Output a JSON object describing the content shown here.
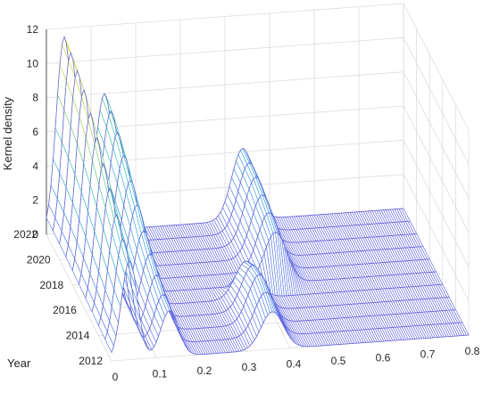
{
  "chart_data": {
    "type": "waterfall-3d",
    "title": "",
    "xlabel": "",
    "ylabel": "Year",
    "zlabel": "Kernel density",
    "xlim": [
      0,
      0.8
    ],
    "zlim": [
      0,
      12
    ],
    "x_ticks": [
      "0",
      "0.1",
      "0.2",
      "0.3",
      "0.4",
      "0.5",
      "0.6",
      "0.7",
      "0.8"
    ],
    "year_ticks": [
      "2012",
      "2014",
      "2016",
      "2018",
      "2020",
      "2022"
    ],
    "z_ticks": [
      "0",
      "2",
      "4",
      "6",
      "8",
      "10",
      "12"
    ],
    "grid": true,
    "colormap": "parula",
    "years": [
      2012,
      2013,
      2014,
      2015,
      2016,
      2017,
      2018,
      2019,
      2020,
      2021,
      2022
    ],
    "peaks": [
      [
        {
          "x": 0.04,
          "h": 5.8,
          "w": 0.018
        },
        {
          "x": 0.13,
          "h": 2.7,
          "w": 0.02
        },
        {
          "x": 0.36,
          "h": 2.2,
          "w": 0.025
        }
      ],
      [
        {
          "x": 0.04,
          "h": 6.3,
          "w": 0.018
        },
        {
          "x": 0.13,
          "h": 2.9,
          "w": 0.02
        },
        {
          "x": 0.36,
          "h": 2.6,
          "w": 0.025
        }
      ],
      [
        {
          "x": 0.04,
          "h": 7.0,
          "w": 0.018
        },
        {
          "x": 0.13,
          "h": 3.3,
          "w": 0.02
        },
        {
          "x": 0.36,
          "h": 2.9,
          "w": 0.025
        }
      ],
      [
        {
          "x": 0.04,
          "h": 7.8,
          "w": 0.018
        },
        {
          "x": 0.13,
          "h": 3.8,
          "w": 0.02
        },
        {
          "x": 0.36,
          "h": 2.7,
          "w": 0.025
        }
      ],
      [
        {
          "x": 0.04,
          "h": 8.5,
          "w": 0.018
        },
        {
          "x": 0.13,
          "h": 4.4,
          "w": 0.02
        },
        {
          "x": 0.36,
          "h": 2.2,
          "w": 0.025
        }
      ],
      [
        {
          "x": 0.04,
          "h": 9.3,
          "w": 0.018
        },
        {
          "x": 0.13,
          "h": 5.2,
          "w": 0.02
        },
        {
          "x": 0.44,
          "h": 3.0,
          "w": 0.025
        }
      ],
      [
        {
          "x": 0.04,
          "h": 10.0,
          "w": 0.018
        },
        {
          "x": 0.13,
          "h": 5.9,
          "w": 0.02
        },
        {
          "x": 0.44,
          "h": 3.4,
          "w": 0.025
        }
      ],
      [
        {
          "x": 0.04,
          "h": 10.6,
          "w": 0.018
        },
        {
          "x": 0.13,
          "h": 6.6,
          "w": 0.02
        },
        {
          "x": 0.44,
          "h": 3.7,
          "w": 0.025
        }
      ],
      [
        {
          "x": 0.04,
          "h": 11.0,
          "w": 0.018
        },
        {
          "x": 0.13,
          "h": 7.2,
          "w": 0.02
        },
        {
          "x": 0.44,
          "h": 4.0,
          "w": 0.025
        }
      ],
      [
        {
          "x": 0.04,
          "h": 11.3,
          "w": 0.018
        },
        {
          "x": 0.13,
          "h": 7.7,
          "w": 0.02
        },
        {
          "x": 0.44,
          "h": 4.1,
          "w": 0.025
        }
      ],
      [
        {
          "x": 0.04,
          "h": 11.5,
          "w": 0.018
        },
        {
          "x": 0.13,
          "h": 8.0,
          "w": 0.02
        },
        {
          "x": 0.44,
          "h": 4.2,
          "w": 0.025
        }
      ]
    ]
  }
}
